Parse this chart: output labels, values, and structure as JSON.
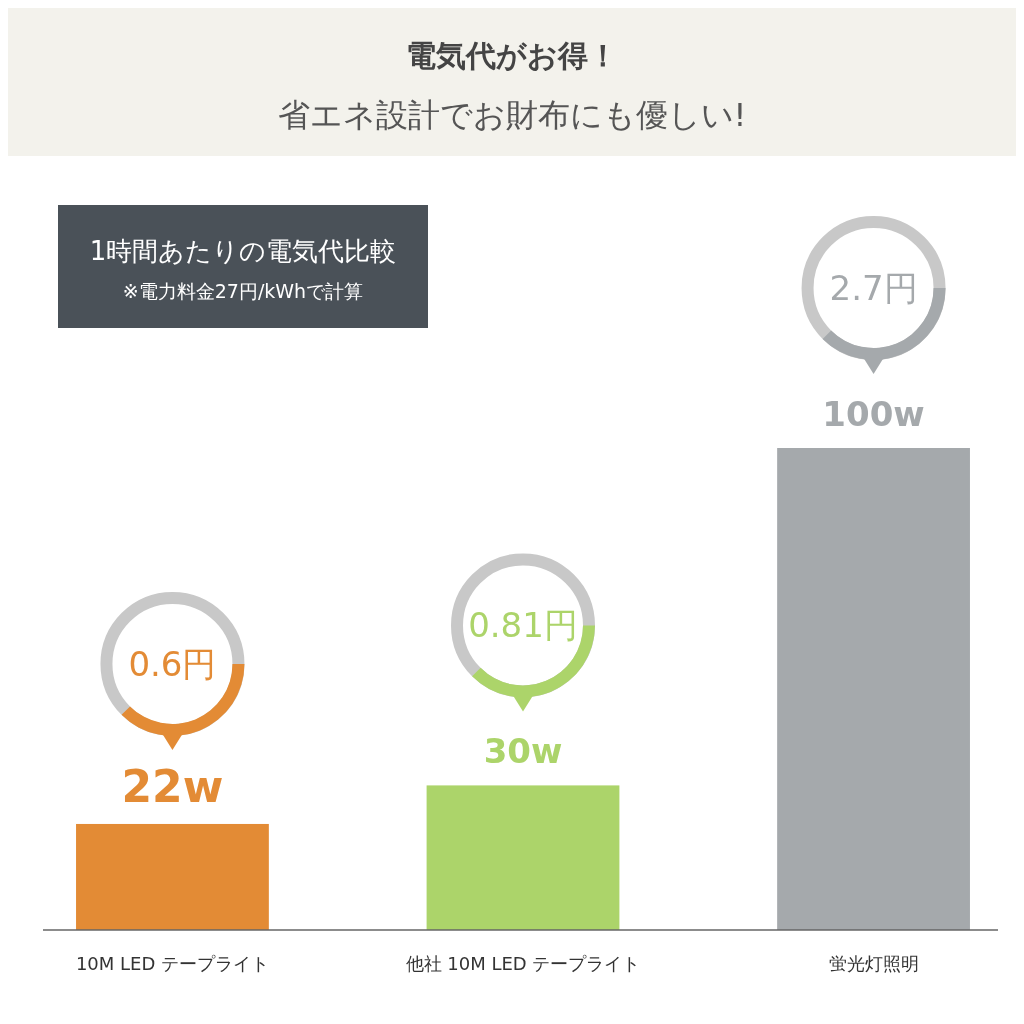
{
  "chart_data": {
    "type": "bar",
    "title": "電気代がお得！",
    "subtitle": "省エネ設計でお財布にも優しい!",
    "categories": [
      "10M LED テープライト",
      "他社 10M LED テープライト",
      "蛍光灯照明"
    ],
    "values": [
      22,
      30,
      100
    ],
    "colors": [
      "#e38b35",
      "#acd46a",
      "#a5a9ac"
    ],
    "value_labels": [
      "22w",
      "30w",
      "100w"
    ],
    "annotations": [
      "1時間あたりの電気代比較",
      "※電力料金27円/kWhで計算",
      "0.6円",
      "0.81円",
      "2.7円"
    ]
  }
}
